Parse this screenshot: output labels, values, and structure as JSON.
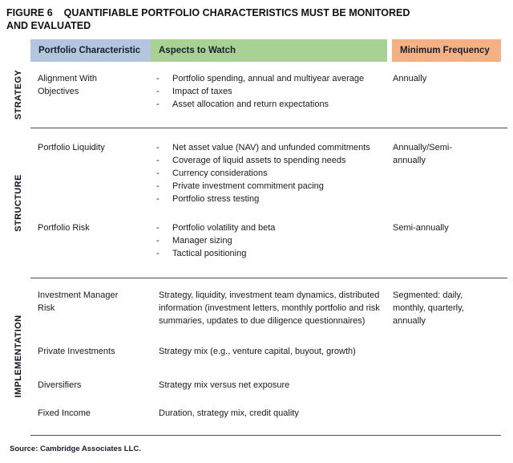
{
  "title": {
    "figure_label": "FIGURE 6",
    "line1": "QUANTIFIABLE PORTFOLIO CHARACTERISTICS MUST BE MONITORED",
    "line2": "AND EVALUATED"
  },
  "header": {
    "characteristic": "Portfolio Characteristic",
    "aspects": "Aspects to Watch",
    "frequency": "Minimum Frequency"
  },
  "colors": {
    "header_blue": "#b3c6dd",
    "header_green": "#a9d195",
    "header_orange": "#f5b183",
    "divider": "#4f4f4f"
  },
  "glyphs": {
    "bullet": "-"
  },
  "sections": [
    {
      "label": "STRATEGY",
      "rows": [
        {
          "characteristic": "Alignment With Objectives",
          "aspects": [
            "Portfolio spending, annual and multiyear average",
            "Impact of taxes",
            "Asset allocation and return expectations"
          ],
          "frequency": "Annually"
        }
      ]
    },
    {
      "label": "STRUCTURE",
      "rows": [
        {
          "characteristic": "Portfolio Liquidity",
          "aspects": [
            "Net asset value (NAV) and unfunded commitments",
            "Coverage of liquid assets to spending needs",
            "Currency considerations",
            "Private investment commitment pacing",
            "Portfolio stress testing"
          ],
          "frequency": "Annually/Semi-annually"
        },
        {
          "characteristic": "Portfolio Risk",
          "aspects": [
            "Portfolio volatility and beta",
            "Manager sizing",
            "Tactical positioning"
          ],
          "frequency": "Semi-annually"
        }
      ]
    },
    {
      "label": "IMPLEMENTATION",
      "rows": [
        {
          "characteristic": "Investment Manager Risk",
          "aspects_text": "Strategy, liquidity, investment team dynamics, distributed information (investment letters, monthly portfolio and risk summaries, updates to due diligence questionnaires)",
          "frequency": "Segmented: daily, monthly, quarterly, annually"
        },
        {
          "characteristic": "Private Investments",
          "aspects_text": "Strategy mix (e.g., venture capital, buyout, growth)",
          "frequency": ""
        },
        {
          "characteristic": "Diversifiers",
          "aspects_text": "Strategy mix versus net exposure",
          "frequency": ""
        },
        {
          "characteristic": "Fixed Income",
          "aspects_text": "Duration, strategy mix, credit quality",
          "frequency": ""
        }
      ]
    }
  ],
  "source": "Source: Cambridge Associates LLC."
}
